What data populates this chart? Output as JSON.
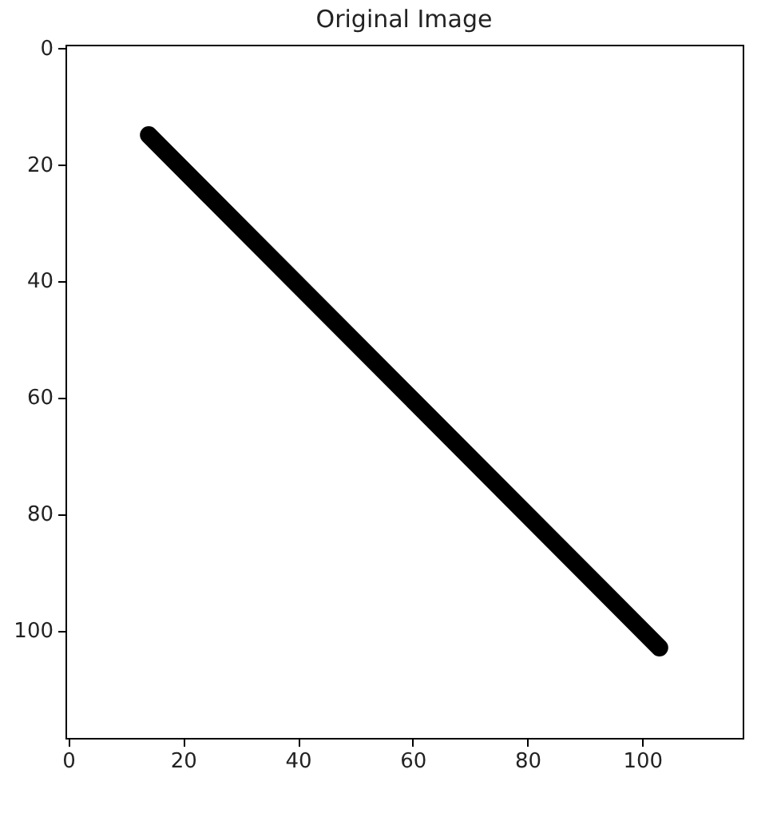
{
  "chart_data": {
    "type": "line",
    "title": "Original Image",
    "x": [
      14,
      103
    ],
    "series": [
      {
        "color": "#000000",
        "values": [
          15,
          103
        ]
      }
    ],
    "xlim": [
      -0.5,
      117.5
    ],
    "ylim": [
      118.5,
      -0.5
    ],
    "xticks": [
      0,
      20,
      40,
      60,
      80,
      100
    ],
    "yticks": [
      0,
      20,
      40,
      60,
      80,
      100
    ]
  }
}
